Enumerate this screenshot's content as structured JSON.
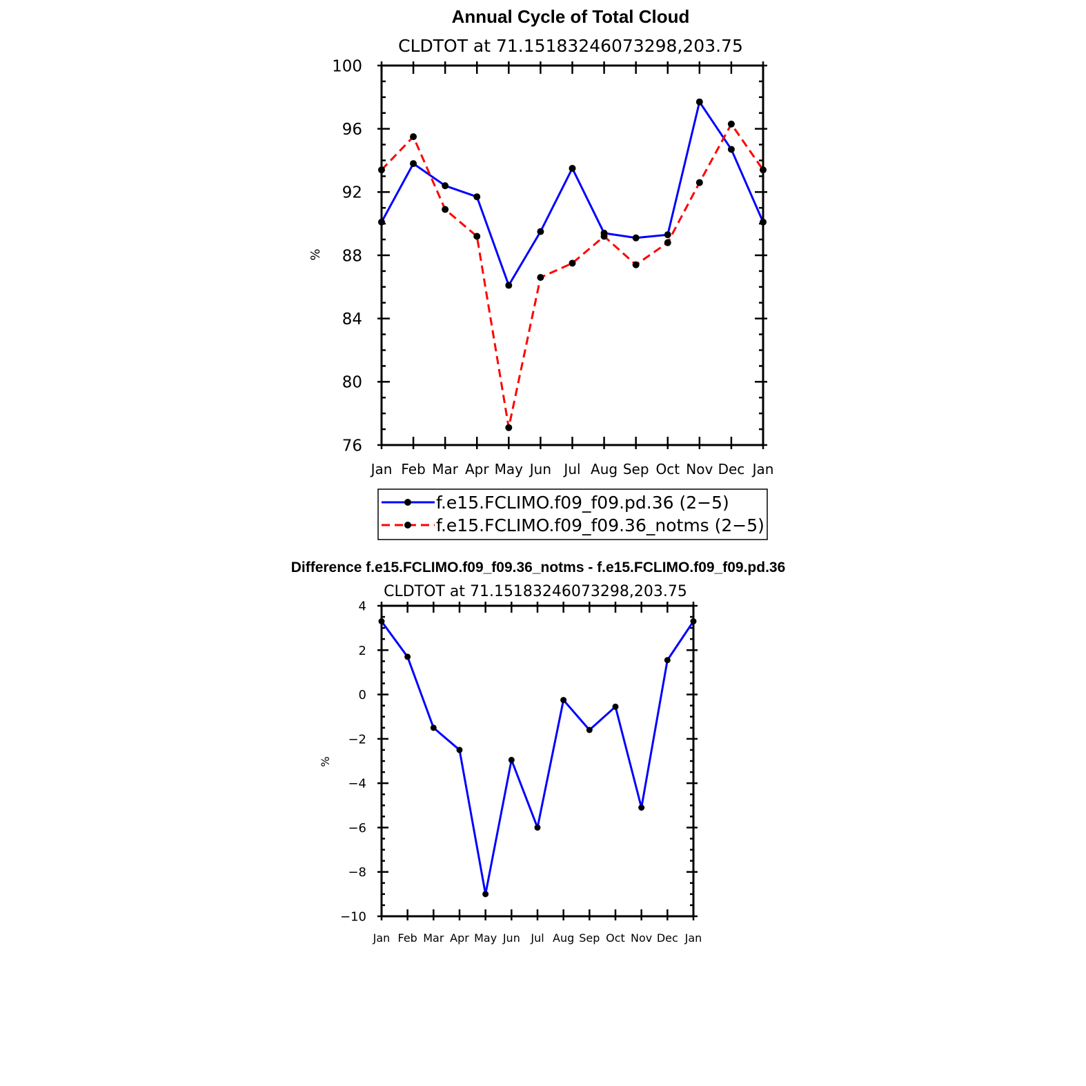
{
  "chart_data": [
    {
      "type": "line",
      "title": "Annual Cycle of Total Cloud",
      "subtitle": "CLDTOT at 71.15183246073298,203.75",
      "ylabel": "%",
      "xlabel": "",
      "categories": [
        "Jan",
        "Feb",
        "Mar",
        "Apr",
        "May",
        "Jun",
        "Jul",
        "Aug",
        "Sep",
        "Oct",
        "Nov",
        "Dec",
        "Jan"
      ],
      "ylim": [
        76,
        100
      ],
      "yticks": [
        76,
        80,
        84,
        88,
        92,
        96,
        100
      ],
      "legend": "below",
      "series": [
        {
          "name": "f.e15.FCLIMO.f09_f09.pd.36 (2-5)",
          "legend_label": "f.e15.FCLIMO.f09_f09.pd.36 (2−5)",
          "color": "#0000ff",
          "dash": "solid",
          "values": [
            90.1,
            93.8,
            92.4,
            91.7,
            86.1,
            89.5,
            93.5,
            89.4,
            89.1,
            89.3,
            97.7,
            94.7,
            90.1
          ]
        },
        {
          "name": "f.e15.FCLIMO.f09_f09.36_notms (2-5)",
          "legend_label": "f.e15.FCLIMO.f09_f09.36_notms (2−5)",
          "color": "#ff0000",
          "dash": "dashed",
          "values": [
            93.4,
            95.5,
            90.9,
            89.2,
            77.1,
            86.6,
            87.5,
            89.2,
            87.4,
            88.8,
            92.6,
            96.3,
            93.4
          ]
        }
      ]
    },
    {
      "type": "line",
      "title": "Difference f.e15.FCLIMO.f09_f09.36_notms - f.e15.FCLIMO.f09_f09.pd.36",
      "subtitle": "CLDTOT at 71.15183246073298,203.75",
      "ylabel": "%",
      "xlabel": "",
      "categories": [
        "Jan",
        "Feb",
        "Mar",
        "Apr",
        "May",
        "Jun",
        "Jul",
        "Aug",
        "Sep",
        "Oct",
        "Nov",
        "Dec",
        "Jan"
      ],
      "ylim": [
        -10,
        4
      ],
      "yticks": [
        -10,
        -8,
        -6,
        -4,
        -2,
        0,
        2,
        4
      ],
      "ytick_labels": [
        "−10",
        "−8",
        "−6",
        "−4",
        "−2",
        "0",
        "2",
        "4"
      ],
      "series": [
        {
          "name": "difference",
          "color": "#0000ff",
          "dash": "solid",
          "values": [
            3.3,
            1.7,
            -1.5,
            -2.5,
            -9.0,
            -2.95,
            -6.0,
            -0.25,
            -1.6,
            -0.55,
            -5.1,
            1.55,
            3.3
          ]
        }
      ]
    }
  ]
}
